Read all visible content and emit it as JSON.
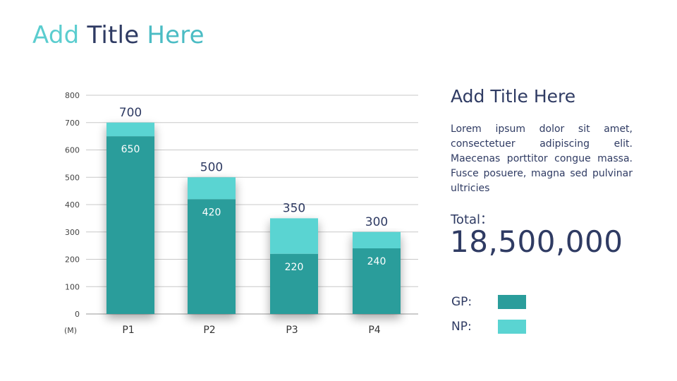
{
  "slide": {
    "title_parts": [
      "Add",
      "Title",
      "Here"
    ]
  },
  "panel": {
    "title": "Add Title Here",
    "body": "Lorem ipsum dolor sit amet, consectetuer adipiscing elit. Maecenas porttitor congue massa. Fusce posuere, magna sed pulvinar ultricies",
    "total_label": "Total：",
    "total_value": "18,500,000"
  },
  "legend": {
    "items": [
      {
        "label": "GP:",
        "color": "#2a9d9b"
      },
      {
        "label": "NP:",
        "color": "#5ad4d2"
      }
    ]
  },
  "chart_data": {
    "type": "bar",
    "stacked": true,
    "categories": [
      "P1",
      "P2",
      "P3",
      "P4"
    ],
    "series": [
      {
        "name": "GP",
        "values": [
          650,
          420,
          220,
          240
        ],
        "color": "#2a9d9b"
      },
      {
        "name": "NP",
        "values": [
          50,
          80,
          130,
          60
        ],
        "color": "#5ad4d2"
      }
    ],
    "totals": [
      700,
      500,
      350,
      300
    ],
    "ylim": [
      0,
      800
    ],
    "yticks": [
      0,
      100,
      200,
      300,
      400,
      500,
      600,
      700,
      800
    ],
    "unit_label": "(M)",
    "grid": true,
    "legend_position": "right"
  }
}
